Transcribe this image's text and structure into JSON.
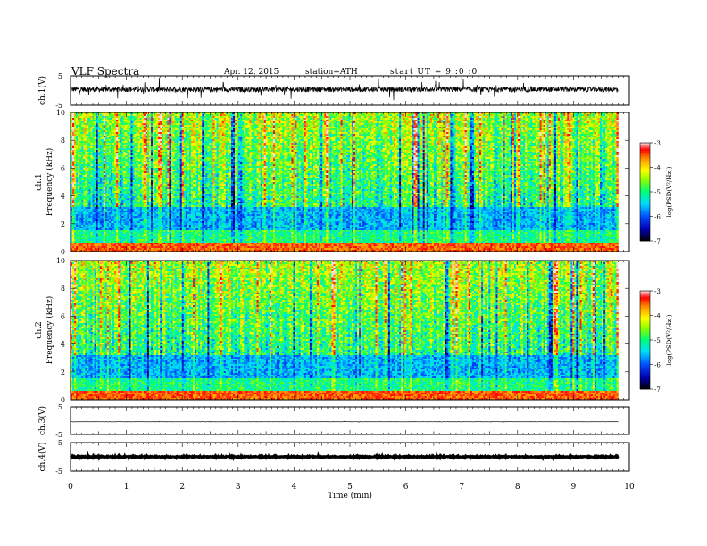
{
  "header": {
    "title": "VLF Spectra",
    "date": "Apr. 12, 2015",
    "station": "station=ATH",
    "start": "start UT = 9 :0 :0"
  },
  "chart_data": [
    {
      "type": "line",
      "name": "ch1-waveform",
      "ylabel": "ch.1(V)",
      "ylim": [
        -5,
        5
      ],
      "yticks": [
        "5",
        "-5"
      ],
      "xlim": [
        0,
        10
      ],
      "xmax_data": 9.8,
      "level": 0.4,
      "noise": 0.9
    },
    {
      "type": "heatmap",
      "name": "ch1-spectrogram",
      "ylabel": [
        "ch.1",
        "Frequency (kHz)"
      ],
      "ylim": [
        0,
        10
      ],
      "yticks": [
        "0",
        "2",
        "4",
        "6",
        "8",
        "10"
      ],
      "xlim": [
        0,
        10
      ],
      "xmax_data": 9.8,
      "colorbar": {
        "label": "log(PSD(V²/Hz))",
        "range": [
          -7,
          -3
        ],
        "ticks": [
          "-3",
          "-4",
          "-5",
          "-6",
          "-7"
        ]
      }
    },
    {
      "type": "heatmap",
      "name": "ch2-spectrogram",
      "ylabel": [
        "ch.2",
        "Frequency (kHz)"
      ],
      "ylim": [
        0,
        10
      ],
      "yticks": [
        "0",
        "2",
        "4",
        "6",
        "8",
        "10"
      ],
      "xlim": [
        0,
        10
      ],
      "xmax_data": 9.8,
      "colorbar": {
        "label": "log(PSD(V²/Hz))",
        "range": [
          -7,
          -3
        ],
        "ticks": [
          "-3",
          "-4",
          "-5",
          "-6",
          "-7"
        ]
      }
    },
    {
      "type": "line",
      "name": "ch3-waveform",
      "ylabel": "ch.3(V)",
      "ylim": [
        -5,
        5
      ],
      "yticks": [
        "5",
        "-5"
      ],
      "xlim": [
        0,
        10
      ],
      "xmax_data": 9.8,
      "level": -0.4,
      "noise": 0.05
    },
    {
      "type": "line",
      "name": "ch4-waveform",
      "ylabel": "ch.4(V)",
      "ylim": [
        -5,
        5
      ],
      "yticks": [
        "5",
        "-5"
      ],
      "xlim": [
        0,
        10
      ],
      "xmax_data": 9.8,
      "level": 0,
      "noise": 0.15
    }
  ],
  "xaxis": {
    "label": "Time (min)",
    "ticks": [
      "0",
      "1",
      "2",
      "3",
      "4",
      "5",
      "6",
      "7",
      "8",
      "9",
      "10"
    ]
  }
}
